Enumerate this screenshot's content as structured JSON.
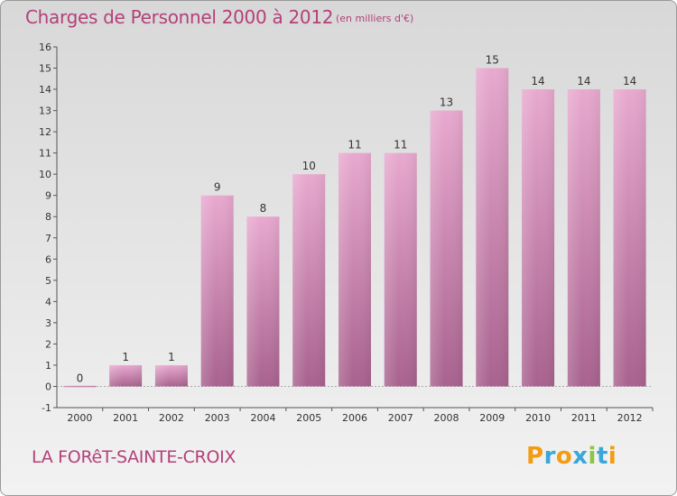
{
  "header": {
    "title": "Charges de Personnel 2000 à 2012",
    "subtitle": "(en milliers d'€)"
  },
  "footer": {
    "commune": "LA FORêT-SAINTE-CROIX",
    "logo": "Proxiti"
  },
  "colors": {
    "bar_top": "#e8a9cf",
    "bar_bottom": "#a8628e",
    "text_accent": "#b4407a"
  },
  "chart_data": {
    "type": "bar",
    "title": "Charges de Personnel 2000 à 2012",
    "subtitle": "(en milliers d'€)",
    "categories": [
      "2000",
      "2001",
      "2002",
      "2003",
      "2004",
      "2005",
      "2006",
      "2007",
      "2008",
      "2009",
      "2010",
      "2011",
      "2012"
    ],
    "values": [
      0,
      1,
      1,
      9,
      8,
      10,
      11,
      11,
      13,
      15,
      14,
      14,
      14
    ],
    "ylim": [
      -1,
      16
    ],
    "yticks": [
      -1,
      0,
      1,
      2,
      3,
      4,
      5,
      6,
      7,
      8,
      9,
      10,
      11,
      12,
      13,
      14,
      15,
      16
    ],
    "grid": false,
    "xlabel": "",
    "ylabel": ""
  }
}
